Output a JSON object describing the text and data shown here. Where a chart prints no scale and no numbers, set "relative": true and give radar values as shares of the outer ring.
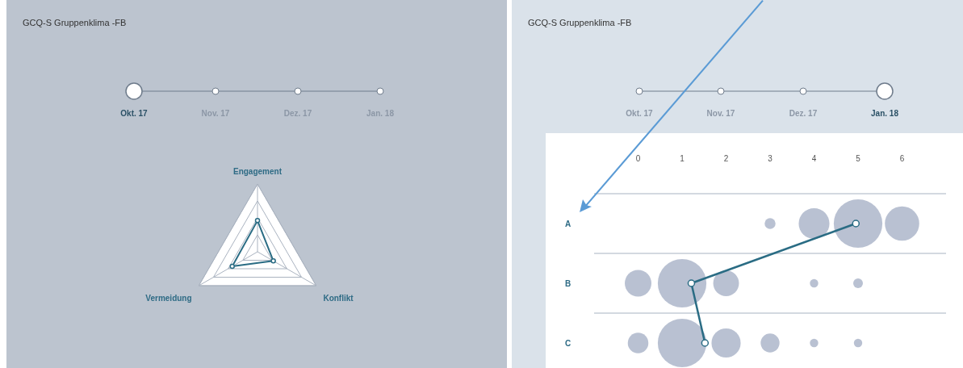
{
  "chart_data": [
    {
      "type": "radar",
      "title": "GCQ-S Gruppenklima -FB",
      "annotations": [
        "Okt. 17",
        "Nov. 17",
        "Dez. 17",
        "Jan. 18"
      ],
      "categories": [
        "Engagement",
        "Konflikt",
        "Vermeidung"
      ],
      "relative": true,
      "marker": "circle",
      "series": [
        {
          "color": "#2a6c84",
          "values": [
            0.46,
            0.27,
            0.43
          ]
        }
      ]
    },
    {
      "type": "line",
      "orientation": "horizontal",
      "title": "GCQ-S Gruppenklima -FB",
      "annotations": [
        "Okt. 17",
        "Nov. 17",
        "Dez. 17",
        "Jan. 18"
      ],
      "categories": [
        "A",
        "B",
        "C"
      ],
      "xlim": [
        -1,
        7
      ],
      "xticks": [
        0,
        1,
        2,
        3,
        4,
        5,
        6
      ],
      "grid": "y",
      "marker": "circle",
      "series": [
        {
          "type": "bubble",
          "color": "#b5bed0",
          "values": [
            null,
            0,
            0
          ],
          "sizes": [
            null,
            0.3,
            0.18
          ]
        },
        {
          "type": "bubble",
          "color": "#b5bed0",
          "values": [
            null,
            1,
            1
          ],
          "sizes": [
            null,
            1.0,
            1.0
          ]
        },
        {
          "type": "bubble",
          "color": "#b5bed0",
          "values": [
            null,
            2,
            2
          ],
          "sizes": [
            null,
            0.28,
            0.36
          ]
        },
        {
          "type": "bubble",
          "color": "#b5bed0",
          "values": [
            3,
            null,
            3
          ],
          "sizes": [
            0.05,
            null,
            0.15
          ]
        },
        {
          "type": "bubble",
          "color": "#b5bed0",
          "values": [
            4,
            4,
            4
          ],
          "sizes": [
            0.4,
            0.03,
            0.03
          ]
        },
        {
          "type": "bubble",
          "color": "#b5bed0",
          "values": [
            5,
            5,
            5
          ],
          "sizes": [
            1.0,
            0.04,
            0.03
          ]
        },
        {
          "type": "bubble",
          "color": "#b5bed0",
          "values": [
            6,
            null,
            null
          ],
          "sizes": [
            0.5,
            null,
            null
          ]
        },
        {
          "type": "line",
          "color": "#2a6c84",
          "values": [
            4.95,
            1.21,
            1.52
          ]
        }
      ]
    }
  ]
}
